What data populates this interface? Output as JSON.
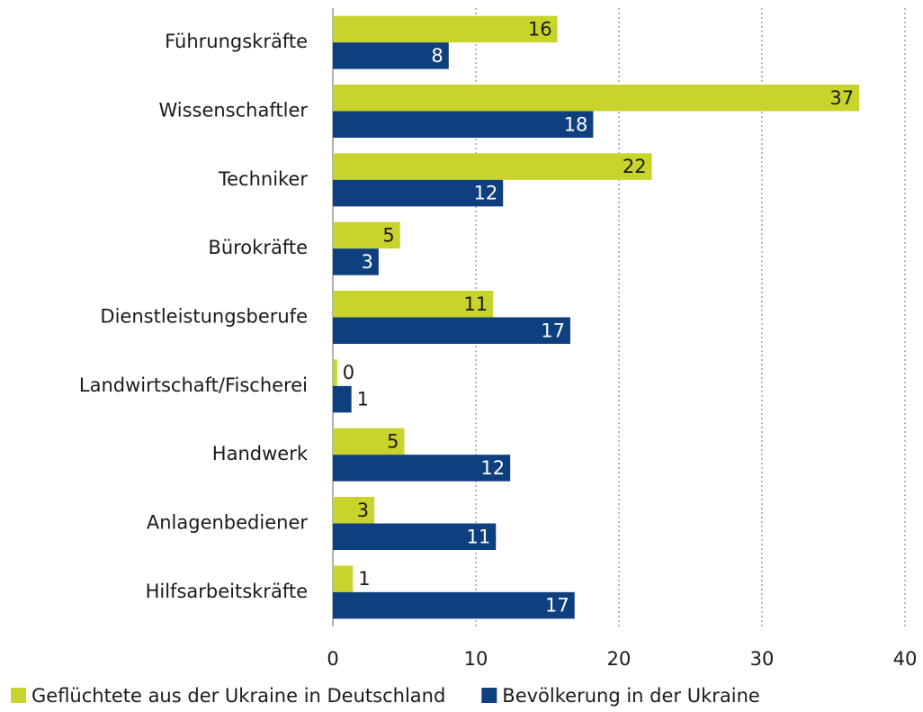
{
  "chart_data": {
    "type": "barh",
    "categories": [
      "Führungskräfte",
      "Wissenschaftler",
      "Techniker",
      "Bürokräfte",
      "Dienstleistungsberufe",
      "Landwirtschaft/Fischerei",
      "Handwerk",
      "Anlagenbediener",
      "Hilfsarbeitskräfte"
    ],
    "series": [
      {
        "name": "Geflüchtete aus der Ukraine in Deutschland",
        "color": "#c8d42c",
        "values": [
          15.7,
          36.8,
          22.3,
          4.7,
          11.2,
          0.3,
          5.0,
          2.9,
          1.4
        ],
        "value_labels": [
          "16",
          "37",
          "22",
          "5",
          "11",
          "0",
          "5",
          "3",
          "1"
        ]
      },
      {
        "name": "Bevölkerung in der Ukraine",
        "color": "#0e3f7e",
        "values": [
          8.1,
          18.2,
          11.9,
          3.2,
          16.6,
          1.3,
          12.4,
          11.4,
          16.9
        ],
        "value_labels": [
          "8",
          "18",
          "12",
          "3",
          "17",
          "1",
          "12",
          "11",
          "17"
        ]
      }
    ],
    "xlim": [
      0,
      40
    ],
    "xticks": [
      0,
      10,
      20,
      30,
      40
    ],
    "grid": true,
    "legend": "bottom"
  }
}
